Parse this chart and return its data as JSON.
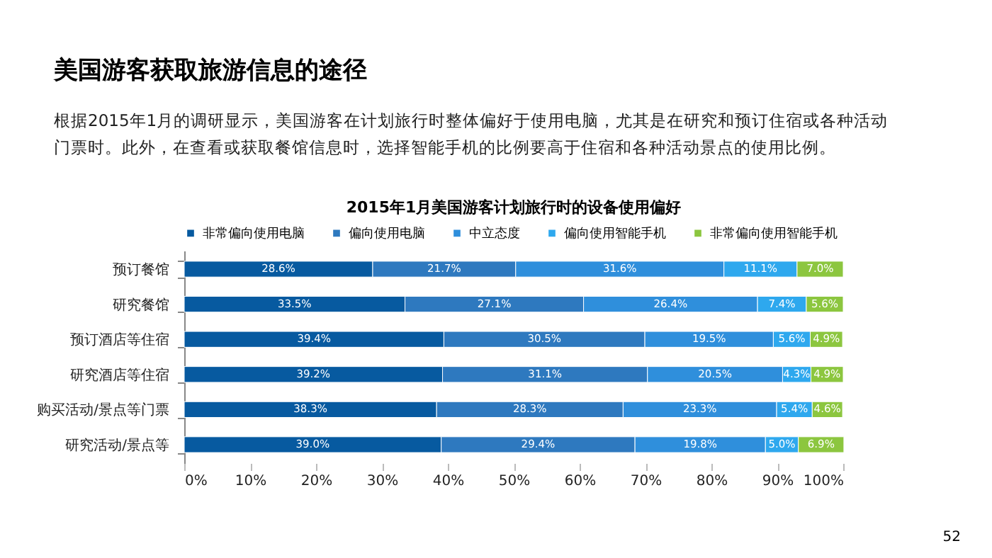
{
  "chart_data": {
    "type": "bar",
    "orientation": "horizontal",
    "stacked": true,
    "title": "美国游客获取旅游信息的途径",
    "subtitle": "根据2015年1月的调研显示，美国游客在计划旅行时整体偏好于使用电脑，尤其是在研究和预订住宿或各种活动门票时。此外，在查看或获取餐馆信息时，选择智能手机的比例要高于住宿和各种活动景点的使用比例。",
    "annotations": [
      "2015年1月美国游客计划旅行时的设备使用偏好",
      "52"
    ],
    "categories": [
      "预订餐馆",
      "研究餐馆",
      "预订酒店等住宿",
      "研究酒店等住宿",
      "购买活动/景点等门票",
      "研究活动/景点等"
    ],
    "series": [
      {
        "name": "非常偏向使用电脑",
        "color": "#075aa0",
        "values": [
          28.6,
          33.5,
          39.4,
          39.2,
          38.3,
          39.0
        ],
        "value_labels": [
          "28.6%",
          "33.5%",
          "39.4%",
          "39.2%",
          "38.3%",
          "39.0%"
        ]
      },
      {
        "name": "偏向使用电脑",
        "color": "#2e79bf",
        "values": [
          21.7,
          27.1,
          30.5,
          31.1,
          28.3,
          29.4
        ],
        "value_labels": [
          "21.7%",
          "27.1%",
          "30.5%",
          "31.1%",
          "28.3%",
          "29.4%"
        ]
      },
      {
        "name": "中立态度",
        "color": "#2f8fdc",
        "values": [
          31.6,
          26.4,
          19.5,
          20.5,
          23.3,
          19.8
        ],
        "value_labels": [
          "31.6%",
          "26.4%",
          "19.5%",
          "20.5%",
          "23.3%",
          "19.8%"
        ]
      },
      {
        "name": "偏向使用智能手机",
        "color": "#2ea8ee",
        "values": [
          11.1,
          7.4,
          5.6,
          4.3,
          5.4,
          5.0
        ],
        "value_labels": [
          "11.1%",
          "7.4%",
          "5.6%",
          "4.3%",
          "5.4%",
          "5.0%"
        ]
      },
      {
        "name": "非常偏向使用智能手机",
        "color": "#8cc63f",
        "values": [
          7.0,
          5.6,
          4.9,
          4.9,
          4.6,
          6.9
        ],
        "value_labels": [
          "7.0%",
          "5.6%",
          "4.9%",
          "4.9%",
          "4.6%",
          "6.9%"
        ]
      }
    ],
    "xlim": [
      0,
      100
    ],
    "xticks": [
      {
        "value": 0,
        "label": "0%"
      },
      {
        "value": 10,
        "label": "10%"
      },
      {
        "value": 20,
        "label": "20%"
      },
      {
        "value": 30,
        "label": "30%"
      },
      {
        "value": 40,
        "label": "40%"
      },
      {
        "value": 50,
        "label": "50%"
      },
      {
        "value": 60,
        "label": "60%"
      },
      {
        "value": 70,
        "label": "70%"
      },
      {
        "value": 80,
        "label": "80%"
      },
      {
        "value": 90,
        "label": "90%"
      },
      {
        "value": 100,
        "label": "100%"
      }
    ],
    "legend": "top",
    "grid": false
  }
}
